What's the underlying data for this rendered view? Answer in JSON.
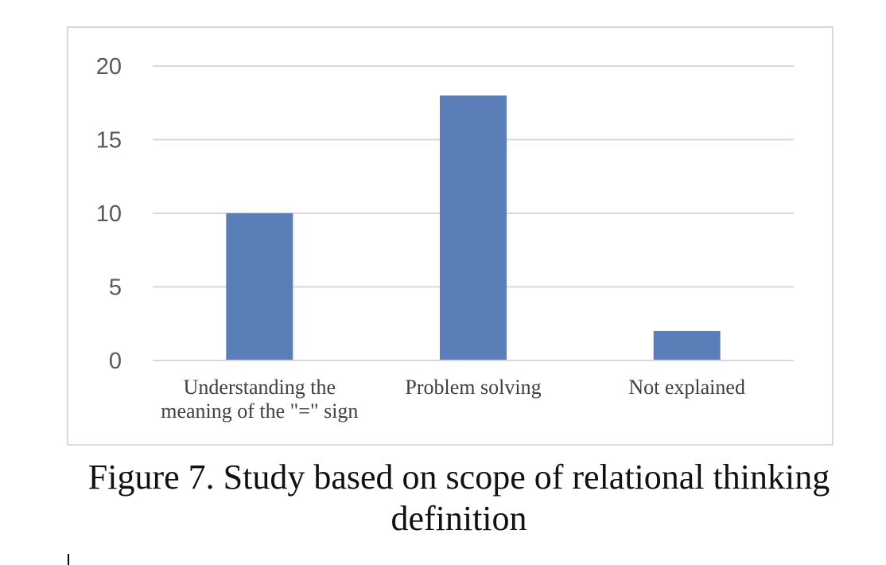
{
  "chart_data": {
    "type": "bar",
    "categories": [
      "Understanding the meaning of the \"=\" sign",
      "Problem solving",
      "Not explained"
    ],
    "category_lines": [
      [
        "Understanding the",
        "meaning of the \"=\" sign"
      ],
      [
        "Problem solving"
      ],
      [
        "Not explained"
      ]
    ],
    "values": [
      10,
      18,
      2
    ],
    "y_ticks": [
      "0",
      "5",
      "10",
      "15",
      "20"
    ],
    "ylim": [
      0,
      20
    ],
    "grid": true,
    "legend": "none",
    "bar_color": "#5a7fb8",
    "grid_color": "#d9d9d9"
  },
  "caption": "Figure 7. Study based on scope of relational thinking\ndefinition"
}
